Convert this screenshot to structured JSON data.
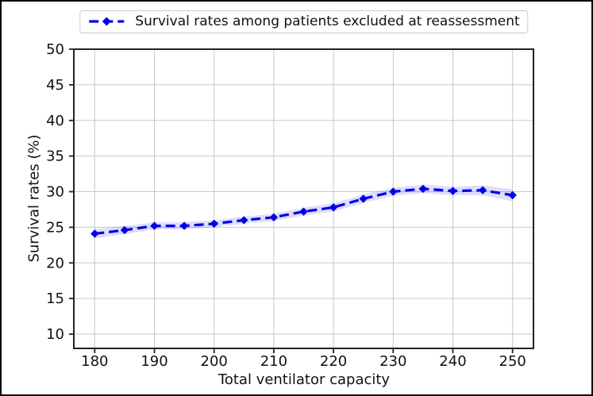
{
  "legend": {
    "label": "Survival rates among patients excluded at reassessment",
    "border_color": "#cccccc",
    "background": "#ffffff"
  },
  "colors": {
    "line": "#0000e6",
    "band": "#0000ff",
    "band_opacity": 0.13,
    "grid": "#c8c8c8",
    "spine": "#222222",
    "text": "#111111",
    "figure_border": "#000000",
    "background": "#ffffff"
  },
  "chart_data": {
    "type": "line",
    "title": "",
    "xlabel": "Total ventilator capacity",
    "ylabel": "Survival rates (%)",
    "xlim": [
      176.5,
      253.5
    ],
    "ylim": [
      8,
      50
    ],
    "xticks": [
      180,
      190,
      200,
      210,
      220,
      230,
      240,
      250
    ],
    "yticks": [
      10,
      15,
      20,
      25,
      30,
      35,
      40,
      45,
      50
    ],
    "grid": true,
    "legend_position": "upper center above axes",
    "series": [
      {
        "name": "Survival rates among patients excluded at reassessment",
        "linestyle": "dashed",
        "marker": "diamond",
        "x": [
          180,
          185,
          190,
          195,
          200,
          205,
          210,
          215,
          220,
          225,
          230,
          235,
          240,
          245,
          250
        ],
        "y": [
          24.1,
          24.6,
          25.2,
          25.2,
          25.5,
          26.0,
          26.4,
          27.2,
          27.8,
          29.0,
          30.0,
          30.4,
          30.1,
          30.2,
          29.5
        ],
        "band_halfwidth": [
          0.65,
          0.55,
          0.5,
          0.5,
          0.5,
          0.5,
          0.5,
          0.55,
          0.6,
          0.6,
          0.55,
          0.6,
          0.6,
          0.7,
          0.85
        ]
      }
    ]
  }
}
